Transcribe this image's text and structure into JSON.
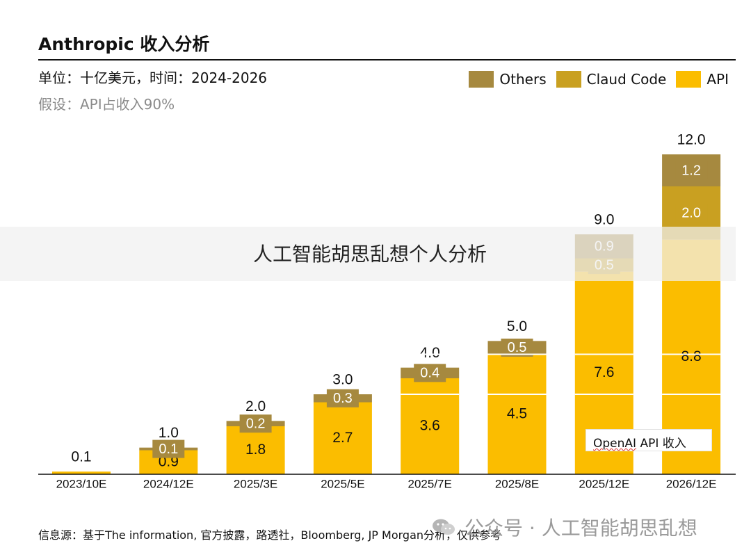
{
  "title": "Anthropic 收入分析",
  "subtitle": "单位：十亿美元，时间：2024-2026",
  "assumption": "假设：API占收入90%",
  "legend": [
    {
      "name": "Others",
      "color": "#a6893f"
    },
    {
      "name": "Claud Code",
      "color": "#c9a021"
    },
    {
      "name": "API",
      "color": "#fbbd00"
    }
  ],
  "banner_text": "人工智能胡思乱想个人分析",
  "annotation": {
    "prefix": "OpenAI",
    "rest": " API 收入"
  },
  "source": "信息源：基于The information, 官方披露，路透社，Bloomberg, JP Morgan分析，仅供参考",
  "watermark": "公众号 · 人工智能胡思乱想",
  "chart_data": {
    "type": "bar",
    "stacked": true,
    "categories": [
      "2023/10E",
      "2024/12E",
      "2025/3E",
      "2025/5E",
      "2025/7E",
      "2025/8E",
      "2025/12E",
      "2026/12E"
    ],
    "series": [
      {
        "name": "API",
        "color": "#fbbd00",
        "values": [
          0.1,
          0.9,
          1.8,
          2.7,
          3.6,
          4.5,
          7.6,
          8.8
        ]
      },
      {
        "name": "Claud Code",
        "color": "#c9a021",
        "values": [
          0,
          0,
          0,
          0,
          0,
          0,
          0.5,
          2.0
        ]
      },
      {
        "name": "Others",
        "color": "#a6893f",
        "values": [
          0,
          0.1,
          0.2,
          0.3,
          0.4,
          0.5,
          0.9,
          1.2
        ]
      }
    ],
    "totals": [
      0.1,
      1.0,
      2.0,
      3.0,
      4.0,
      5.0,
      9.0,
      12.0
    ],
    "total_labels": [
      "0.1",
      "1.0",
      "2.0",
      "3.0",
      "4.0",
      "5.0",
      "9.0",
      "12.0"
    ],
    "segment_labels": {
      "API": [
        "",
        "0.9",
        "1.8",
        "2.7",
        "3.6",
        "4.5",
        "7.6",
        "8.8"
      ],
      "Claud Code": [
        "",
        "",
        "",
        "",
        "",
        "",
        "0.5",
        "2.0"
      ],
      "Others": [
        "",
        "0.1",
        "0.2",
        "0.3",
        "0.4",
        "0.5",
        "0.9",
        "1.2"
      ]
    },
    "reference_line": {
      "label": "OpenAI API 收入",
      "values": [
        4.5,
        3.0
      ]
    },
    "ylim": [
      0,
      12.0
    ]
  }
}
